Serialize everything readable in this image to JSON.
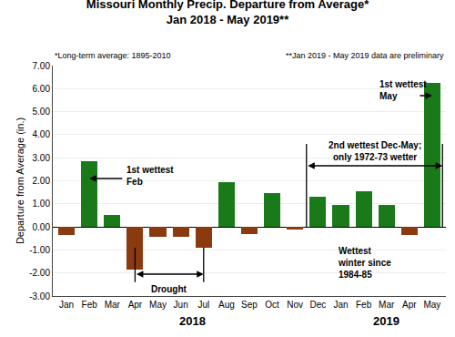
{
  "chart_data": {
    "type": "bar",
    "title": "Missouri Monthly Precip. Departure from Average*\nJan 2018 - May 2019**",
    "subtitle": [
      "*Long-term average: 1895-2010",
      "**Jan 2019 - May 2019 data are preliminary"
    ],
    "ylabel": "Departure from Average (in.)",
    "categories": [
      "Jan",
      "Feb",
      "Mar",
      "Apr",
      "May",
      "Jun",
      "Jul",
      "Aug",
      "Sep",
      "Oct",
      "Nov",
      "Dec",
      "Jan",
      "Feb",
      "Mar",
      "Apr",
      "May"
    ],
    "values": [
      -0.35,
      2.85,
      0.5,
      -1.85,
      -0.45,
      -0.45,
      -0.9,
      1.95,
      -0.3,
      1.45,
      -0.1,
      1.3,
      0.95,
      1.55,
      0.95,
      -0.35,
      6.25
    ],
    "colors": [
      "#8B3A0F",
      "#1a7a1a",
      "#1a7a1a",
      "#8B3A0F",
      "#8B3A0F",
      "#8B3A0F",
      "#8B3A0F",
      "#1a7a1a",
      "#8B3A0F",
      "#1a7a1a",
      "#8B3A0F",
      "#1a7a1a",
      "#1a7a1a",
      "#1a7a1a",
      "#1a7a1a",
      "#8B3A0F",
      "#1a7a1a"
    ],
    "ylim": [
      -3.0,
      7.0
    ],
    "yticks": [
      {
        "value": -3.0,
        "label": "-3.00"
      },
      {
        "value": -2.0,
        "label": "-2.00"
      },
      {
        "value": -1.0,
        "label": "-1.00"
      },
      {
        "value": 0.0,
        "label": "0.00"
      },
      {
        "value": 1.0,
        "label": "1.00"
      },
      {
        "value": 2.0,
        "label": "2.00"
      },
      {
        "value": 3.0,
        "label": "3.00"
      },
      {
        "value": 4.0,
        "label": "4.00"
      },
      {
        "value": 5.0,
        "label": "5.00"
      },
      {
        "value": 6.0,
        "label": "6.00"
      },
      {
        "value": 7.0,
        "label": "7.00"
      }
    ],
    "grid": true,
    "annotations": [
      "Drought",
      "1st wettest\nFeb",
      "2nd wettest Dec-May;\nonly 1972-73 wetter",
      "Wettest\nwinter since\n1984-85",
      "1st wettest\nMay",
      "2018",
      "2019"
    ]
  }
}
